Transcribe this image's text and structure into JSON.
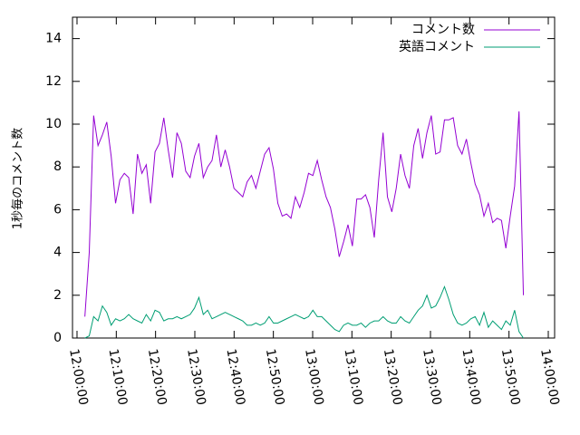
{
  "chart_data": {
    "type": "line",
    "ylabel": "1秒毎のコメント数",
    "x": [
      "12:02:00",
      "12:03:07",
      "12:04:14",
      "12:05:21",
      "12:06:28",
      "12:07:35",
      "12:08:42",
      "12:09:49",
      "12:10:56",
      "12:12:03",
      "12:13:10",
      "12:14:17",
      "12:15:24",
      "12:16:31",
      "12:17:38",
      "12:18:45",
      "12:19:52",
      "12:20:59",
      "12:22:06",
      "12:23:13",
      "12:24:20",
      "12:25:27",
      "12:26:34",
      "12:27:41",
      "12:28:48",
      "12:29:55",
      "12:31:02",
      "12:32:09",
      "12:33:16",
      "12:34:23",
      "12:35:30",
      "12:36:37",
      "12:37:44",
      "12:38:51",
      "12:39:58",
      "12:41:05",
      "12:42:12",
      "12:43:19",
      "12:44:26",
      "12:45:33",
      "12:46:40",
      "12:47:47",
      "12:48:54",
      "12:50:01",
      "12:51:08",
      "12:52:15",
      "12:53:22",
      "12:54:29",
      "12:55:36",
      "12:56:43",
      "12:57:50",
      "12:58:57",
      "13:00:04",
      "13:01:11",
      "13:02:18",
      "13:03:25",
      "13:04:32",
      "13:05:39",
      "13:06:46",
      "13:07:53",
      "13:09:00",
      "13:10:07",
      "13:11:14",
      "13:12:21",
      "13:13:28",
      "13:14:35",
      "13:15:42",
      "13:16:49",
      "13:17:56",
      "13:19:03",
      "13:20:10",
      "13:21:17",
      "13:22:24",
      "13:23:31",
      "13:24:38",
      "13:25:45",
      "13:26:52",
      "13:27:59",
      "13:29:06",
      "13:30:13",
      "13:31:20",
      "13:32:27",
      "13:33:34",
      "13:34:41",
      "13:35:48",
      "13:36:55",
      "13:38:02",
      "13:39:09",
      "13:40:16",
      "13:41:23",
      "13:42:30",
      "13:43:37",
      "13:44:44",
      "13:45:51",
      "13:46:58",
      "13:48:05",
      "13:49:12",
      "13:50:19",
      "13:51:26",
      "13:52:33",
      "13:53:40"
    ],
    "series": [
      {
        "name": "コメント数",
        "color": "#9400d3",
        "values": [
          1.0,
          4,
          10.4,
          9.0,
          9.5,
          10.1,
          8.5,
          6.3,
          7.4,
          7.7,
          7.5,
          5.8,
          8.6,
          7.7,
          8.1,
          6.3,
          8.7,
          9.1,
          10.3,
          8.8,
          7.5,
          9.6,
          9.1,
          7.8,
          7.5,
          8.5,
          9.1,
          7.5,
          8.0,
          8.3,
          9.5,
          8.0,
          8.8,
          8.0,
          7.0,
          6.8,
          6.6,
          7.3,
          7.6,
          7.0,
          7.8,
          8.6,
          8.9,
          7.9,
          6.3,
          5.7,
          5.8,
          5.6,
          6.6,
          6.1,
          6.8,
          7.7,
          7.6,
          8.3,
          7.4,
          6.6,
          6.1,
          5.1,
          3.8,
          4.5,
          5.3,
          4.3,
          6.5,
          6.5,
          6.7,
          6.1,
          4.7,
          7.4,
          9.6,
          6.6,
          5.9,
          7.0,
          8.6,
          7.6,
          7.0,
          9.0,
          9.8,
          8.4,
          9.6,
          10.4,
          8.6,
          8.7,
          10.2,
          10.2,
          10.3,
          9.0,
          8.6,
          9.3,
          8.2,
          7.2,
          6.7,
          5.7,
          6.3,
          5.4,
          5.6,
          5.5,
          4.2,
          5.7,
          7.1,
          10.6,
          2.0
        ]
      },
      {
        "name": "英語コメント",
        "color": "#009e73",
        "values": [
          0,
          0.1,
          1.0,
          0.8,
          1.5,
          1.2,
          0.6,
          0.9,
          0.8,
          0.9,
          1.1,
          0.9,
          0.8,
          0.7,
          1.1,
          0.8,
          1.3,
          1.2,
          0.8,
          0.9,
          0.9,
          1.0,
          0.9,
          1.0,
          1.1,
          1.4,
          1.9,
          1.1,
          1.3,
          0.9,
          1.0,
          1.1,
          1.2,
          1.1,
          1.0,
          0.9,
          0.8,
          0.6,
          0.6,
          0.7,
          0.6,
          0.7,
          1.0,
          0.7,
          0.7,
          0.8,
          0.9,
          1.0,
          1.1,
          1.0,
          0.9,
          1.0,
          1.3,
          1.0,
          1.0,
          0.8,
          0.6,
          0.4,
          0.3,
          0.6,
          0.7,
          0.6,
          0.6,
          0.7,
          0.5,
          0.7,
          0.8,
          0.8,
          1.0,
          0.8,
          0.7,
          0.7,
          1.0,
          0.8,
          0.7,
          1.0,
          1.3,
          1.5,
          2.0,
          1.4,
          1.5,
          1.9,
          2.4,
          1.8,
          1.1,
          0.7,
          0.6,
          0.7,
          0.9,
          1.0,
          0.6,
          1.2,
          0.5,
          0.8,
          0.6,
          0.4,
          0.8,
          0.6,
          1.3,
          0.3,
          0.0
        ]
      }
    ],
    "xlim": [
      "11:58:51",
      "14:01:37"
    ],
    "xticks": [
      "12:00:00",
      "12:10:00",
      "12:20:00",
      "12:30:00",
      "12:40:00",
      "12:50:00",
      "13:00:00",
      "13:10:00",
      "13:20:00",
      "13:30:00",
      "13:40:00",
      "13:50:00",
      "14:00:00"
    ],
    "ylim": [
      0,
      15
    ],
    "yticks": [
      0,
      2,
      4,
      6,
      8,
      10,
      12,
      14
    ],
    "legend": "top-right"
  }
}
